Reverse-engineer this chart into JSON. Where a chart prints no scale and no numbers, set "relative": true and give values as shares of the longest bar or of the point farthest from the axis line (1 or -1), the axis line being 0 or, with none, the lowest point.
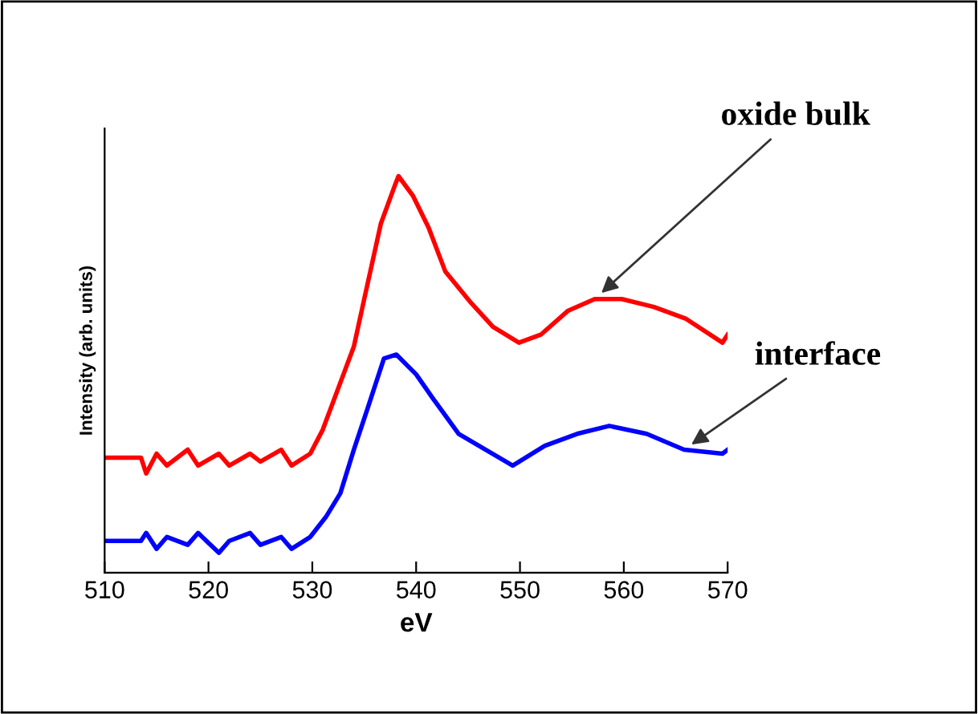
{
  "chart_data": {
    "type": "line",
    "relative": true,
    "xlabel": "eV",
    "ylabel": "Intensity (arb. units)",
    "xlim": [
      510,
      570
    ],
    "xticks": [
      510,
      520,
      530,
      540,
      550,
      560,
      570
    ],
    "annotations": [
      {
        "text": "oxide bulk",
        "x": 557.2,
        "y": 0.69
      },
      {
        "text": "interface",
        "x": 565.8,
        "y": 0.31
      }
    ],
    "series": [
      {
        "color": "#ff0000",
        "x": [
          510,
          513.5,
          514,
          515,
          516,
          518,
          519,
          521,
          522,
          524,
          525,
          527,
          528,
          529.8,
          531,
          532,
          533,
          534,
          535,
          536.6,
          538,
          538.3,
          539.7,
          541.2,
          542.8,
          545.3,
          547.4,
          549.9,
          552,
          554.6,
          557.2,
          559.8,
          562.9,
          566,
          569.5,
          570
        ],
        "values": [
          0.29,
          0.29,
          0.25,
          0.3,
          0.27,
          0.31,
          0.27,
          0.3,
          0.27,
          0.3,
          0.28,
          0.31,
          0.27,
          0.3,
          0.36,
          0.43,
          0.5,
          0.57,
          0.69,
          0.88,
          0.98,
          1.0,
          0.95,
          0.87,
          0.76,
          0.68,
          0.62,
          0.58,
          0.6,
          0.66,
          0.69,
          0.69,
          0.67,
          0.64,
          0.58,
          0.6
        ]
      },
      {
        "color": "#0000ff",
        "x": [
          510,
          513.5,
          514,
          515,
          516,
          518,
          519,
          521,
          522,
          524,
          525,
          527,
          528,
          529.8,
          531.3,
          532.7,
          534,
          535.4,
          536.9,
          538.1,
          540,
          541.6,
          544.1,
          546.7,
          549.3,
          552.4,
          555.5,
          558.6,
          562.2,
          565.8,
          569.5,
          570
        ],
        "values": [
          0.08,
          0.08,
          0.1,
          0.06,
          0.09,
          0.07,
          0.1,
          0.05,
          0.08,
          0.1,
          0.07,
          0.09,
          0.06,
          0.09,
          0.14,
          0.2,
          0.31,
          0.42,
          0.54,
          0.55,
          0.5,
          0.44,
          0.35,
          0.31,
          0.27,
          0.32,
          0.35,
          0.37,
          0.35,
          0.31,
          0.3,
          0.31
        ]
      }
    ]
  }
}
